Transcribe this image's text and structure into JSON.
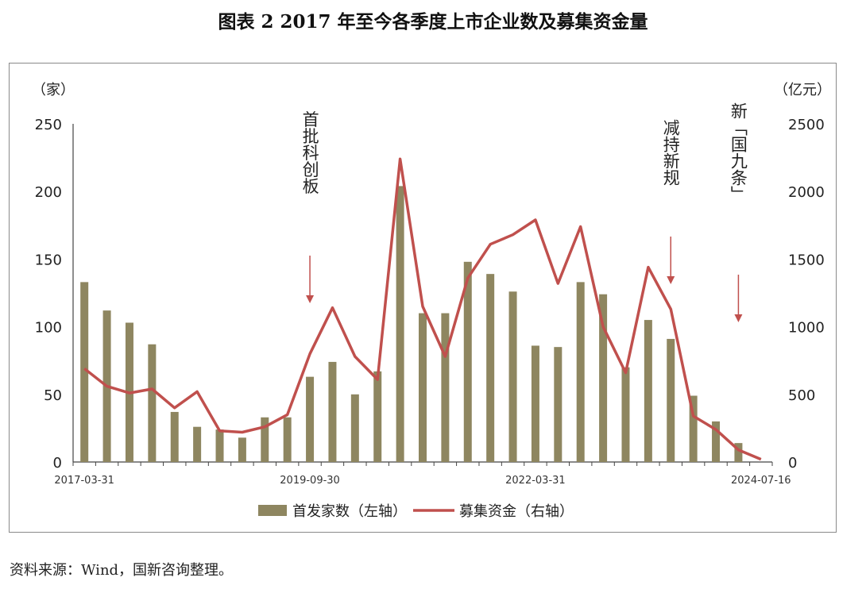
{
  "title": "图表 2 2017 年至今各季度上市企业数及募集资金量",
  "source": "资料来源：Wind，国新咨询整理。",
  "colors": {
    "bar": "#8e8660",
    "line": "#c0504d",
    "arrow": "#c0504d"
  },
  "chart_data": {
    "type": "bar+line",
    "left_axis": {
      "unit": "（家）",
      "ticks": [
        0,
        50,
        100,
        150,
        200,
        250
      ],
      "range": [
        0,
        250
      ]
    },
    "right_axis": {
      "unit": "（亿元）",
      "ticks": [
        0,
        500,
        1000,
        1500,
        2000,
        2500
      ],
      "range": [
        0,
        2500
      ]
    },
    "x_tick_labels": [
      {
        "index": 0,
        "label": "2017-03-31"
      },
      {
        "index": 10,
        "label": "2019-09-30"
      },
      {
        "index": 20,
        "label": "2022-03-31"
      },
      {
        "index": 30,
        "label": "2024-07-16"
      }
    ],
    "series": [
      {
        "name": "首发家数（左轴）",
        "type": "bar",
        "axis": "left",
        "values": [
          133,
          112,
          103,
          87,
          37,
          26,
          24,
          18,
          33,
          33,
          63,
          74,
          50,
          67,
          204,
          110,
          110,
          148,
          139,
          126,
          86,
          85,
          133,
          124,
          70,
          105,
          91,
          49,
          30,
          14,
          null
        ]
      },
      {
        "name": "募集资金（右轴）",
        "type": "line",
        "axis": "right",
        "values": [
          690,
          560,
          510,
          540,
          400,
          520,
          230,
          220,
          260,
          350,
          800,
          1140,
          780,
          610,
          2240,
          1150,
          780,
          1360,
          1610,
          1680,
          1790,
          1320,
          1740,
          1000,
          660,
          1440,
          1130,
          340,
          240,
          90,
          20
        ]
      }
    ],
    "annotations": [
      {
        "text": "首批科创板",
        "index": 10
      },
      {
        "text": "减持新规",
        "index": 26
      },
      {
        "text": "新「国九条」",
        "index": 29
      }
    ],
    "legend_position": "bottom"
  }
}
